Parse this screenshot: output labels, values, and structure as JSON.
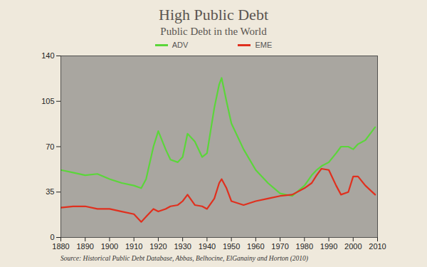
{
  "chart_data": {
    "type": "line",
    "title": "High Public Debt",
    "subtitle": "Public Debt in the World",
    "source": "Source: Historical Public Debt Database, Abbas, Belhocine, ElGanainy and Horton (2010)",
    "x": [
      1880,
      1885,
      1890,
      1895,
      1900,
      1905,
      1910,
      1913,
      1915,
      1918,
      1920,
      1923,
      1925,
      1928,
      1930,
      1932,
      1935,
      1938,
      1940,
      1943,
      1945,
      1946,
      1948,
      1950,
      1955,
      1960,
      1965,
      1970,
      1975,
      1980,
      1983,
      1985,
      1987,
      1990,
      1993,
      1995,
      1998,
      2000,
      2002,
      2005,
      2009
    ],
    "series": [
      {
        "name": "ADV",
        "color": "#5bd63a",
        "values": [
          52,
          50,
          48,
          49,
          45,
          42,
          40,
          38,
          45,
          70,
          82,
          68,
          60,
          58,
          62,
          80,
          74,
          62,
          65,
          100,
          118,
          123,
          105,
          88,
          68,
          52,
          42,
          34,
          32,
          40,
          48,
          52,
          55,
          58,
          65,
          70,
          70,
          68,
          72,
          75,
          85
        ]
      },
      {
        "name": "EME",
        "color": "#e0301e",
        "values": [
          23,
          24,
          24,
          22,
          22,
          20,
          18,
          12,
          16,
          22,
          20,
          22,
          24,
          25,
          28,
          33,
          25,
          24,
          22,
          30,
          42,
          45,
          38,
          28,
          25,
          28,
          30,
          32,
          33,
          38,
          42,
          48,
          53,
          52,
          40,
          33,
          35,
          47,
          47,
          40,
          33
        ]
      }
    ],
    "xlim": [
      1880,
      2010
    ],
    "xticks": [
      1880,
      1890,
      1900,
      1910,
      1920,
      1930,
      1940,
      1950,
      1960,
      1970,
      1980,
      1990,
      2000,
      2010
    ],
    "ylim": [
      0,
      140
    ],
    "yticks": [
      0,
      35,
      70,
      105,
      140
    ],
    "grid": false,
    "legend": "top"
  }
}
